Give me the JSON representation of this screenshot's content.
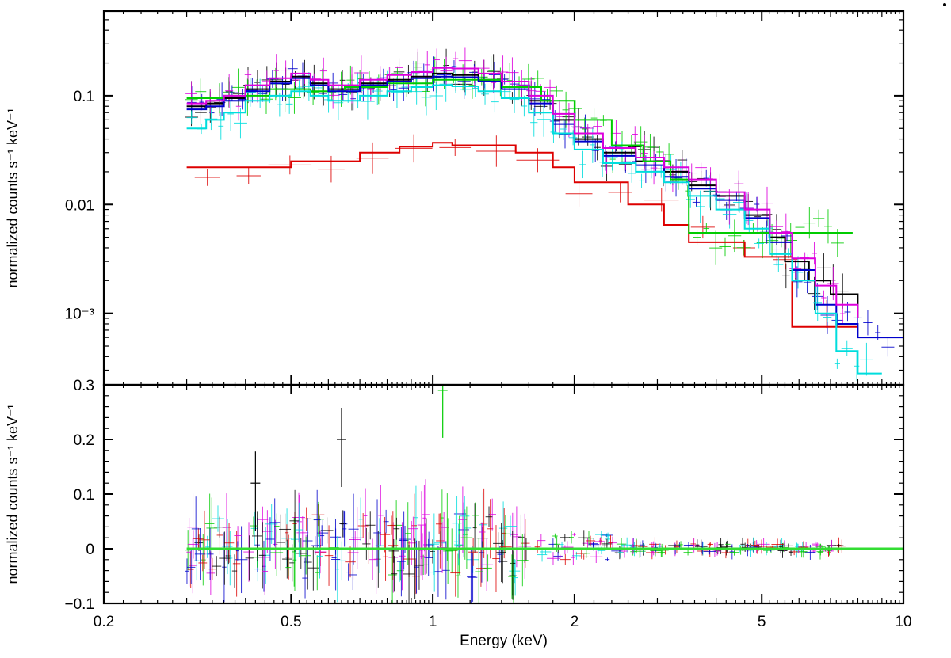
{
  "chart_data": [
    {
      "type": "line",
      "panel": "top",
      "scale": "log-log",
      "xlabel": "",
      "ylabel": "normalized counts s⁻¹ keV⁻¹",
      "xlim": [
        0.2,
        10
      ],
      "ylim": [
        0.00022,
        0.6
      ],
      "x_tick_labels": [],
      "y_ticks": [
        {
          "value": 0.1,
          "label": "0.1"
        },
        {
          "value": 0.01,
          "label": "0.01"
        },
        {
          "value": 0.001,
          "label": "10⁻³"
        }
      ],
      "series": [
        {
          "name": "black",
          "color": "#000000",
          "x": [
            0.3,
            0.33,
            0.36,
            0.4,
            0.45,
            0.5,
            0.55,
            0.6,
            0.7,
            0.8,
            0.9,
            1.0,
            1.1,
            1.25,
            1.4,
            1.6,
            1.8,
            2.0,
            2.3,
            2.7,
            3.1,
            3.5,
            4.0,
            4.6,
            5.2,
            5.6,
            6.3,
            7.0,
            8.0
          ],
          "y": [
            0.08,
            0.085,
            0.095,
            0.115,
            0.135,
            0.15,
            0.13,
            0.115,
            0.13,
            0.14,
            0.15,
            0.16,
            0.155,
            0.14,
            0.12,
            0.09,
            0.06,
            0.04,
            0.03,
            0.025,
            0.02,
            0.015,
            0.012,
            0.008,
            0.005,
            0.003,
            0.002,
            0.0015,
            0.0009
          ]
        },
        {
          "name": "red",
          "color": "#dd0000",
          "x": [
            0.3,
            0.5,
            0.7,
            0.85,
            1.0,
            1.1,
            1.5,
            1.8,
            2.0,
            2.6,
            3.1,
            3.5,
            4.6,
            5.8,
            8.0
          ],
          "y": [
            0.022,
            0.025,
            0.03,
            0.034,
            0.037,
            0.035,
            0.03,
            0.022,
            0.016,
            0.01,
            0.0065,
            0.0045,
            0.0033,
            0.00075,
            0.00075
          ]
        },
        {
          "name": "green",
          "color": "#00cc00",
          "x": [
            0.3,
            0.36,
            0.45,
            0.55,
            0.65,
            0.8,
            1.0,
            1.2,
            1.4,
            1.7,
            2.0,
            2.4,
            2.8,
            3.2,
            3.5,
            5.0,
            7.8
          ],
          "y": [
            0.095,
            0.1,
            0.115,
            0.11,
            0.12,
            0.13,
            0.14,
            0.14,
            0.12,
            0.09,
            0.06,
            0.035,
            0.025,
            0.017,
            0.0055,
            0.0055,
            0.0055
          ]
        },
        {
          "name": "blue",
          "color": "#0000cc",
          "x": [
            0.3,
            0.33,
            0.36,
            0.4,
            0.45,
            0.5,
            0.55,
            0.6,
            0.7,
            0.8,
            0.9,
            1.0,
            1.1,
            1.25,
            1.4,
            1.6,
            1.8,
            2.0,
            2.3,
            2.7,
            3.1,
            3.5,
            4.0,
            4.6,
            5.2,
            5.8,
            6.5,
            7.2,
            8.0,
            10.0
          ],
          "y": [
            0.075,
            0.08,
            0.09,
            0.11,
            0.13,
            0.145,
            0.125,
            0.11,
            0.125,
            0.135,
            0.145,
            0.15,
            0.148,
            0.135,
            0.115,
            0.085,
            0.055,
            0.038,
            0.028,
            0.023,
            0.018,
            0.014,
            0.011,
            0.0075,
            0.0045,
            0.0025,
            0.0012,
            0.0008,
            0.0006,
            0.0006
          ]
        },
        {
          "name": "cyan",
          "color": "#00dddd",
          "x": [
            0.3,
            0.33,
            0.36,
            0.4,
            0.45,
            0.5,
            0.55,
            0.6,
            0.7,
            0.8,
            0.9,
            1.0,
            1.1,
            1.25,
            1.4,
            1.6,
            1.8,
            2.0,
            2.3,
            2.7,
            3.1,
            3.5,
            4.0,
            4.6,
            5.2,
            5.8,
            6.5,
            7.2,
            8.0,
            9.0
          ],
          "y": [
            0.05,
            0.06,
            0.07,
            0.09,
            0.1,
            0.11,
            0.1,
            0.09,
            0.1,
            0.11,
            0.12,
            0.125,
            0.122,
            0.11,
            0.095,
            0.07,
            0.045,
            0.032,
            0.024,
            0.02,
            0.016,
            0.012,
            0.009,
            0.006,
            0.0035,
            0.002,
            0.001,
            0.00045,
            0.00028,
            0.00028
          ]
        },
        {
          "name": "magenta",
          "color": "#dd00dd",
          "x": [
            0.3,
            0.33,
            0.36,
            0.4,
            0.45,
            0.5,
            0.55,
            0.6,
            0.7,
            0.8,
            0.9,
            1.0,
            1.1,
            1.25,
            1.4,
            1.6,
            1.8,
            2.0,
            2.3,
            2.7,
            3.1,
            3.5,
            4.0,
            4.6,
            5.2,
            5.8,
            6.5,
            7.2,
            8.0
          ],
          "y": [
            0.085,
            0.09,
            0.1,
            0.125,
            0.145,
            0.16,
            0.14,
            0.125,
            0.14,
            0.155,
            0.165,
            0.18,
            0.178,
            0.16,
            0.135,
            0.1,
            0.068,
            0.045,
            0.033,
            0.027,
            0.022,
            0.017,
            0.013,
            0.009,
            0.0055,
            0.0032,
            0.0018,
            0.0012,
            0.0009
          ]
        }
      ]
    },
    {
      "type": "scatter",
      "panel": "bottom",
      "scale": "log-x",
      "xlabel": "Energy (keV)",
      "ylabel": "normalized counts s⁻¹ keV⁻¹",
      "xlim": [
        0.2,
        10
      ],
      "ylim": [
        -0.1,
        0.3
      ],
      "x_ticks": [
        {
          "value": 0.2,
          "label": "0.2"
        },
        {
          "value": 0.5,
          "label": "0.5"
        },
        {
          "value": 1,
          "label": "1"
        },
        {
          "value": 2,
          "label": "2"
        },
        {
          "value": 5,
          "label": "5"
        },
        {
          "value": 10,
          "label": "10"
        }
      ],
      "y_ticks": [
        {
          "value": -0.1,
          "label": "−0.1"
        },
        {
          "value": 0,
          "label": "0"
        },
        {
          "value": 0.1,
          "label": "0.1"
        },
        {
          "value": 0.2,
          "label": "0.2"
        },
        {
          "value": 0.3,
          "label": "0.3"
        }
      ],
      "zero_line": {
        "value": 0,
        "color": "#33dd33"
      },
      "highlight_points": [
        {
          "color": "#000000",
          "x": 0.64,
          "y": 0.2
        },
        {
          "color": "#00cc00",
          "x": 1.05,
          "y": 0.29
        },
        {
          "color": "#000000",
          "x": 0.42,
          "y": 0.12
        }
      ]
    }
  ],
  "colors": {
    "black": "#000000",
    "red": "#dd0000",
    "green": "#00cc00",
    "blue": "#0000cc",
    "cyan": "#00dddd",
    "magenta": "#dd00dd",
    "zero_line": "#33dd33"
  }
}
